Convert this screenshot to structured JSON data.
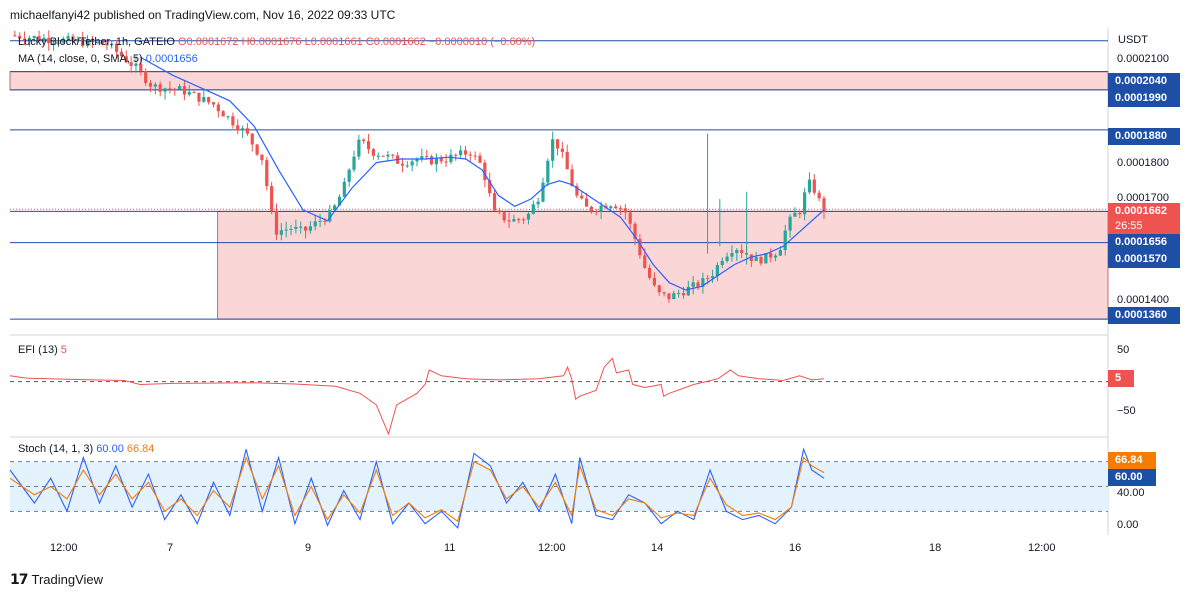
{
  "header": {
    "publisher": "michaelfanyi42 published on TradingView.com, Nov 16, 2022 09:33 UTC"
  },
  "price_legend": {
    "symbol": "Lucky Block/Tether, 1h, GATEIO",
    "ohlc": "O0.0001672 H0.0001676 L0.0001661 C0.0001662 −0.0000010 (−0.60%)"
  },
  "ma_legend": {
    "label": "MA (14, close, 0, SMA, 5)",
    "value": "0.0001656"
  },
  "efi_legend": {
    "label": "EFI (13)",
    "value": "5"
  },
  "stoch_legend": {
    "label": "Stoch (14, 1, 3)",
    "k": "60.00",
    "d": "66.84"
  },
  "currency": "USDT",
  "footer": {
    "brand": "TradingView",
    "logo_icon": "tradingview-logo-icon"
  },
  "colors": {
    "up": "#26a69a",
    "down": "#ef5350",
    "ma": "#2962ff",
    "zone": "#f8c8c8",
    "level_line": "#1e4fa6",
    "stoch_k": "#2962ff",
    "stoch_d": "#f57c00",
    "stoch_band": "#e3f2fd"
  },
  "chart_data": [
    {
      "type": "candlestick",
      "title": "Lucky Block/Tether, 1h, GATEIO",
      "ylabel": "USDT",
      "ylim": [
        0.000133,
        0.000216
      ],
      "y_ticks": [
        "0.0002100",
        "0.0001800",
        "0.0001700",
        "0.0001400"
      ],
      "x_ticks": [
        "12:00",
        "7",
        "9",
        "11",
        "12:00",
        "14",
        "16",
        "18",
        "12:00"
      ],
      "price_path": [
        [
          0,
          0.000214
        ],
        [
          0.12,
          0.0002115
        ],
        [
          0.155,
          0.000205
        ],
        [
          0.175,
          0.0002
        ],
        [
          0.21,
          0.000199
        ],
        [
          0.25,
          0.000195
        ],
        [
          0.29,
          0.000187
        ],
        [
          0.31,
          0.00018
        ],
        [
          0.325,
          0.00016
        ],
        [
          0.345,
          0.000161
        ],
        [
          0.36,
          0.00016
        ],
        [
          0.38,
          0.000163
        ],
        [
          0.395,
          0.000165
        ],
        [
          0.41,
          0.000172
        ],
        [
          0.42,
          0.00018
        ],
        [
          0.43,
          0.000185
        ],
        [
          0.445,
          0.000182
        ],
        [
          0.46,
          0.000181
        ],
        [
          0.48,
          0.000179
        ],
        [
          0.5,
          0.00018
        ],
        [
          0.515,
          0.0001795
        ],
        [
          0.535,
          0.00018
        ],
        [
          0.55,
          0.000181
        ],
        [
          0.565,
          0.000182
        ],
        [
          0.58,
          0.000178
        ],
        [
          0.595,
          0.000165
        ],
        [
          0.615,
          0.000163
        ],
        [
          0.635,
          0.000164
        ],
        [
          0.65,
          0.00017
        ],
        [
          0.66,
          0.00018
        ],
        [
          0.668,
          0.000186
        ],
        [
          0.68,
          0.00018
        ],
        [
          0.695,
          0.00017
        ],
        [
          0.71,
          0.000166
        ],
        [
          0.725,
          0.000167
        ],
        [
          0.74,
          0.000168
        ],
        [
          0.755,
          0.000166
        ],
        [
          0.768,
          0.000158
        ],
        [
          0.78,
          0.00015
        ],
        [
          0.795,
          0.000143
        ],
        [
          0.81,
          0.000142
        ],
        [
          0.83,
          0.000144
        ],
        [
          0.85,
          0.000146
        ],
        [
          0.865,
          0.000149
        ],
        [
          0.875,
          0.000153
        ],
        [
          0.89,
          0.000156
        ],
        [
          0.905,
          0.000154
        ],
        [
          0.915,
          0.000152
        ],
        [
          0.93,
          0.000153
        ],
        [
          0.945,
          0.000155
        ],
        [
          0.955,
          0.000162
        ],
        [
          0.965,
          0.000165
        ],
        [
          0.972,
          0.000166
        ],
        [
          0.978,
          0.000172
        ],
        [
          0.985,
          0.000174
        ],
        [
          0.99,
          0.00017
        ],
        [
          1.0,
          0.0001662
        ]
      ],
      "spikes": [
        {
          "at": 0.857,
          "high": 0.000187,
          "low": 0.000154
        },
        {
          "at": 0.872,
          "high": 0.000169,
          "low": 0.000156
        },
        {
          "at": 0.905,
          "high": 0.000171,
          "low": 0.000151
        }
      ],
      "ma_path": [
        [
          0.16,
          0.000208
        ],
        [
          0.2,
          0.000203
        ],
        [
          0.23,
          0.0002
        ],
        [
          0.27,
          0.000196
        ],
        [
          0.3,
          0.000189
        ],
        [
          0.33,
          0.000177
        ],
        [
          0.36,
          0.000166
        ],
        [
          0.39,
          0.000163
        ],
        [
          0.42,
          0.000172
        ],
        [
          0.45,
          0.000179
        ],
        [
          0.48,
          0.00018
        ],
        [
          0.51,
          0.00018
        ],
        [
          0.54,
          0.0001805
        ],
        [
          0.56,
          0.00018
        ],
        [
          0.58,
          0.000177
        ],
        [
          0.6,
          0.00017
        ],
        [
          0.62,
          0.000167
        ],
        [
          0.64,
          0.000169
        ],
        [
          0.66,
          0.000173
        ],
        [
          0.675,
          0.000174
        ],
        [
          0.69,
          0.000173
        ],
        [
          0.71,
          0.00017
        ],
        [
          0.73,
          0.000167
        ],
        [
          0.75,
          0.000164
        ],
        [
          0.77,
          0.000158
        ],
        [
          0.79,
          0.000151
        ],
        [
          0.81,
          0.000146
        ],
        [
          0.83,
          0.000144
        ],
        [
          0.85,
          0.000145
        ],
        [
          0.87,
          0.000148
        ],
        [
          0.89,
          0.000151
        ],
        [
          0.91,
          0.000153
        ],
        [
          0.93,
          0.000154
        ],
        [
          0.95,
          0.000156
        ],
        [
          0.97,
          0.00016
        ],
        [
          0.985,
          0.000163
        ],
        [
          1.0,
          0.000166
        ]
      ],
      "zones": [
        {
          "from_x": 0.0,
          "top": 0.000204,
          "bottom": 0.000199
        },
        {
          "from_x": 0.255,
          "top": 0.0001656,
          "bottom": 0.000136
        }
      ],
      "levels": [
        {
          "value": 0.0002125,
          "label": null
        },
        {
          "value": 0.000204,
          "label": "0.0002040"
        },
        {
          "value": 0.000199,
          "label": "0.0001990"
        },
        {
          "value": 0.000188,
          "label": "0.0001880"
        },
        {
          "value": 0.0001656,
          "label": "0.0001656"
        },
        {
          "value": 0.000157,
          "label": "0.0001570"
        },
        {
          "value": 0.000136,
          "label": "0.0001360"
        }
      ],
      "last_price": {
        "value": "0.0001662",
        "countdown": "26:55",
        "level": 0.0001662
      }
    },
    {
      "type": "line",
      "title": "EFI (13)",
      "ylim": [
        -90,
        75
      ],
      "y_ticks": [
        "50",
        "−50"
      ],
      "current": "5",
      "baseline": 0,
      "values": [
        [
          0,
          10
        ],
        [
          0.02,
          6
        ],
        [
          0.1,
          3
        ],
        [
          0.14,
          2
        ],
        [
          0.16,
          -5
        ],
        [
          0.2,
          -3
        ],
        [
          0.3,
          -2
        ],
        [
          0.35,
          -4
        ],
        [
          0.4,
          -8
        ],
        [
          0.43,
          -20
        ],
        [
          0.45,
          -40
        ],
        [
          0.465,
          -95
        ],
        [
          0.475,
          -40
        ],
        [
          0.5,
          -20
        ],
        [
          0.51,
          -5
        ],
        [
          0.515,
          20
        ],
        [
          0.53,
          10
        ],
        [
          0.56,
          5
        ],
        [
          0.6,
          3
        ],
        [
          0.65,
          5
        ],
        [
          0.68,
          10
        ],
        [
          0.685,
          25
        ],
        [
          0.69,
          5
        ],
        [
          0.695,
          -30
        ],
        [
          0.7,
          -25
        ],
        [
          0.72,
          -15
        ],
        [
          0.73,
          25
        ],
        [
          0.74,
          40
        ],
        [
          0.745,
          15
        ],
        [
          0.76,
          20
        ],
        [
          0.765,
          -5
        ],
        [
          0.78,
          -10
        ],
        [
          0.8,
          -5
        ],
        [
          0.803,
          -25
        ],
        [
          0.81,
          -20
        ],
        [
          0.84,
          -5
        ],
        [
          0.87,
          5
        ],
        [
          0.885,
          20
        ],
        [
          0.895,
          10
        ],
        [
          0.92,
          5
        ],
        [
          0.95,
          2
        ],
        [
          0.97,
          10
        ],
        [
          0.985,
          3
        ],
        [
          1.0,
          5
        ]
      ]
    },
    {
      "type": "line",
      "title": "Stoch (14, 1, 3)",
      "ylim": [
        -5,
        105
      ],
      "y_ticks": [
        "40.00",
        "0.00"
      ],
      "band": [
        20,
        80
      ],
      "series": [
        {
          "name": "60.00",
          "values": [
            [
              0,
              70
            ],
            [
              0.03,
              30
            ],
            [
              0.05,
              60
            ],
            [
              0.07,
              20
            ],
            [
              0.09,
              85
            ],
            [
              0.11,
              30
            ],
            [
              0.13,
              75
            ],
            [
              0.15,
              25
            ],
            [
              0.17,
              65
            ],
            [
              0.19,
              10
            ],
            [
              0.21,
              40
            ],
            [
              0.23,
              5
            ],
            [
              0.25,
              55
            ],
            [
              0.27,
              15
            ],
            [
              0.29,
              95
            ],
            [
              0.31,
              20
            ],
            [
              0.33,
              85
            ],
            [
              0.35,
              5
            ],
            [
              0.37,
              60
            ],
            [
              0.39,
              3
            ],
            [
              0.41,
              45
            ],
            [
              0.43,
              10
            ],
            [
              0.45,
              80
            ],
            [
              0.47,
              5
            ],
            [
              0.49,
              30
            ],
            [
              0.51,
              5
            ],
            [
              0.53,
              20
            ],
            [
              0.55,
              0
            ],
            [
              0.57,
              90
            ],
            [
              0.59,
              75
            ],
            [
              0.61,
              30
            ],
            [
              0.63,
              55
            ],
            [
              0.65,
              20
            ],
            [
              0.67,
              65
            ],
            [
              0.69,
              5
            ],
            [
              0.7,
              85
            ],
            [
              0.72,
              15
            ],
            [
              0.74,
              10
            ],
            [
              0.76,
              40
            ],
            [
              0.78,
              30
            ],
            [
              0.8,
              5
            ],
            [
              0.82,
              20
            ],
            [
              0.84,
              10
            ],
            [
              0.86,
              70
            ],
            [
              0.88,
              20
            ],
            [
              0.9,
              10
            ],
            [
              0.92,
              15
            ],
            [
              0.94,
              5
            ],
            [
              0.96,
              25
            ],
            [
              0.975,
              95
            ],
            [
              0.985,
              70
            ],
            [
              1.0,
              60
            ]
          ]
        },
        {
          "name": "66.84",
          "values": [
            [
              0,
              60
            ],
            [
              0.03,
              40
            ],
            [
              0.05,
              50
            ],
            [
              0.07,
              35
            ],
            [
              0.09,
              70
            ],
            [
              0.11,
              40
            ],
            [
              0.13,
              65
            ],
            [
              0.15,
              35
            ],
            [
              0.17,
              55
            ],
            [
              0.19,
              20
            ],
            [
              0.21,
              35
            ],
            [
              0.23,
              15
            ],
            [
              0.25,
              45
            ],
            [
              0.27,
              25
            ],
            [
              0.29,
              85
            ],
            [
              0.31,
              35
            ],
            [
              0.33,
              75
            ],
            [
              0.35,
              15
            ],
            [
              0.37,
              50
            ],
            [
              0.39,
              10
            ],
            [
              0.41,
              40
            ],
            [
              0.43,
              18
            ],
            [
              0.45,
              70
            ],
            [
              0.47,
              15
            ],
            [
              0.49,
              30
            ],
            [
              0.51,
              12
            ],
            [
              0.53,
              22
            ],
            [
              0.55,
              8
            ],
            [
              0.57,
              80
            ],
            [
              0.59,
              70
            ],
            [
              0.61,
              35
            ],
            [
              0.63,
              50
            ],
            [
              0.65,
              25
            ],
            [
              0.67,
              55
            ],
            [
              0.69,
              15
            ],
            [
              0.7,
              75
            ],
            [
              0.72,
              22
            ],
            [
              0.74,
              15
            ],
            [
              0.76,
              35
            ],
            [
              0.78,
              30
            ],
            [
              0.8,
              12
            ],
            [
              0.82,
              18
            ],
            [
              0.84,
              15
            ],
            [
              0.86,
              60
            ],
            [
              0.88,
              28
            ],
            [
              0.9,
              15
            ],
            [
              0.92,
              18
            ],
            [
              0.94,
              10
            ],
            [
              0.96,
              25
            ],
            [
              0.975,
              85
            ],
            [
              0.985,
              75
            ],
            [
              1.0,
              66.84
            ]
          ]
        }
      ]
    }
  ]
}
